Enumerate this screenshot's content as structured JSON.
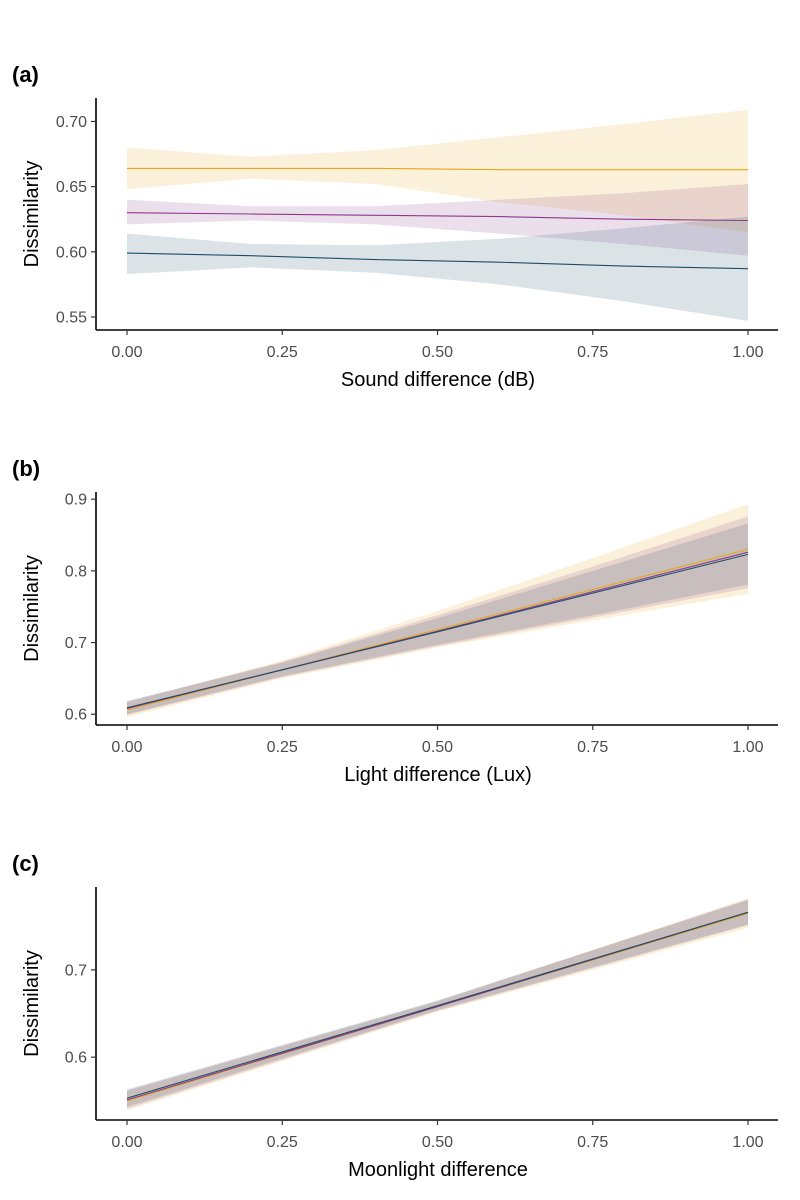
{
  "chart_data": [
    {
      "type": "line",
      "panel_label": "(a)",
      "xlabel": "Sound difference (dB)",
      "ylabel": "Dissimilarity",
      "xlim": [
        0,
        1
      ],
      "ylim": [
        0.54,
        0.718
      ],
      "xticks": [
        0,
        0.25,
        0.5,
        0.75,
        1
      ],
      "xtick_labels": [
        "0.00",
        "0.25",
        "0.50",
        "0.75",
        "1.00"
      ],
      "yticks": [
        0.55,
        0.6,
        0.65,
        0.7
      ],
      "ytick_labels": [
        "0.55",
        "0.60",
        "0.65",
        "0.70"
      ],
      "grid": false,
      "series": [
        {
          "color": "#E6A817",
          "x": [
            0,
            0.2,
            0.4,
            0.6,
            0.8,
            1.0
          ],
          "y": [
            0.664,
            0.664,
            0.664,
            0.663,
            0.663,
            0.663
          ],
          "lower": [
            0.648,
            0.656,
            0.652,
            0.638,
            0.628,
            0.615
          ],
          "upper": [
            0.68,
            0.673,
            0.678,
            0.688,
            0.698,
            0.709
          ]
        },
        {
          "color": "#8B3A8B",
          "x": [
            0,
            0.2,
            0.4,
            0.6,
            0.8,
            1.0
          ],
          "y": [
            0.63,
            0.629,
            0.628,
            0.627,
            0.625,
            0.624
          ],
          "lower": [
            0.621,
            0.624,
            0.621,
            0.614,
            0.606,
            0.597
          ],
          "upper": [
            0.64,
            0.635,
            0.635,
            0.64,
            0.645,
            0.652
          ]
        },
        {
          "color": "#1F4E6B",
          "x": [
            0,
            0.2,
            0.4,
            0.6,
            0.8,
            1.0
          ],
          "y": [
            0.599,
            0.597,
            0.594,
            0.592,
            0.589,
            0.587
          ],
          "lower": [
            0.583,
            0.588,
            0.584,
            0.575,
            0.562,
            0.547
          ],
          "upper": [
            0.614,
            0.606,
            0.605,
            0.61,
            0.618,
            0.627
          ]
        }
      ]
    },
    {
      "type": "line",
      "panel_label": "(b)",
      "xlabel": "Light difference (Lux)",
      "ylabel": "Dissimilarity",
      "xlim": [
        0,
        1
      ],
      "ylim": [
        0.585,
        0.91
      ],
      "xticks": [
        0,
        0.25,
        0.5,
        0.75,
        1
      ],
      "xtick_labels": [
        "0.00",
        "0.25",
        "0.50",
        "0.75",
        "1.00"
      ],
      "yticks": [
        0.6,
        0.7,
        0.8,
        0.9
      ],
      "ytick_labels": [
        "0.6",
        "0.7",
        "0.8",
        "0.9"
      ],
      "grid": false,
      "series": [
        {
          "color": "#E6A817",
          "x": [
            0,
            0.25,
            0.5,
            0.75,
            1.0
          ],
          "y": [
            0.606,
            0.662,
            0.718,
            0.774,
            0.83
          ],
          "lower": [
            0.596,
            0.65,
            0.693,
            0.731,
            0.768
          ],
          "upper": [
            0.616,
            0.675,
            0.744,
            0.818,
            0.893
          ]
        },
        {
          "color": "#8B3A8B",
          "x": [
            0,
            0.25,
            0.5,
            0.75,
            1.0
          ],
          "y": [
            0.608,
            0.662,
            0.716,
            0.771,
            0.826
          ],
          "lower": [
            0.599,
            0.652,
            0.695,
            0.735,
            0.776
          ],
          "upper": [
            0.618,
            0.673,
            0.738,
            0.806,
            0.876
          ]
        },
        {
          "color": "#1F4E6B",
          "x": [
            0,
            0.25,
            0.5,
            0.75,
            1.0
          ],
          "y": [
            0.609,
            0.662,
            0.715,
            0.769,
            0.823
          ],
          "lower": [
            0.6,
            0.653,
            0.697,
            0.738,
            0.781
          ],
          "upper": [
            0.618,
            0.672,
            0.734,
            0.8,
            0.866
          ]
        }
      ]
    },
    {
      "type": "line",
      "panel_label": "(c)",
      "xlabel": "Moonlight difference",
      "ylabel": "Dissimilarity",
      "xlim": [
        0,
        1
      ],
      "ylim": [
        0.528,
        0.795
      ],
      "xticks": [
        0,
        0.25,
        0.5,
        0.75,
        1
      ],
      "xtick_labels": [
        "0.00",
        "0.25",
        "0.50",
        "0.75",
        "1.00"
      ],
      "yticks": [
        0.6,
        0.7
      ],
      "ytick_labels": [
        "0.6",
        "0.7"
      ],
      "grid": false,
      "series": [
        {
          "color": "#E6A817",
          "x": [
            0,
            0.5,
            1.0
          ],
          "y": [
            0.55,
            0.658,
            0.765
          ],
          "lower": [
            0.539,
            0.652,
            0.748
          ],
          "upper": [
            0.561,
            0.664,
            0.782
          ]
        },
        {
          "color": "#8B3A8B",
          "x": [
            0,
            0.5,
            1.0
          ],
          "y": [
            0.551,
            0.658,
            0.766
          ],
          "lower": [
            0.541,
            0.653,
            0.751
          ],
          "upper": [
            0.562,
            0.664,
            0.781
          ]
        },
        {
          "color": "#1F4E6B",
          "x": [
            0,
            0.5,
            1.0
          ],
          "y": [
            0.553,
            0.659,
            0.766
          ],
          "lower": [
            0.543,
            0.654,
            0.752
          ],
          "upper": [
            0.563,
            0.665,
            0.78
          ]
        }
      ]
    }
  ]
}
